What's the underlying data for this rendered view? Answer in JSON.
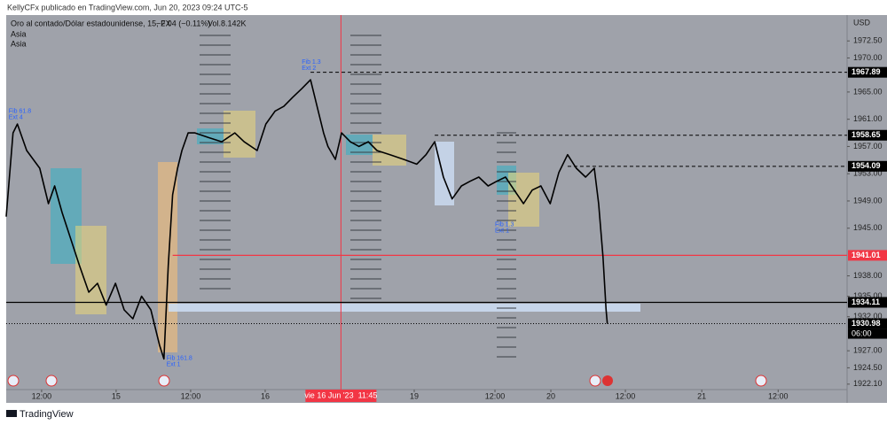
{
  "header": {
    "title": "KellyCFx publicado en TradingView.com, Jun 20, 2023 09:24 UTC-5"
  },
  "chart_data": {
    "type": "line",
    "legend_title": "Oro al contado/Dólar estadounidense, 15, FX",
    "change": "−2.04 (−0.11%)",
    "volume": "Vol.8.142K",
    "indicators": [
      "Asia",
      "Asia"
    ],
    "currency": "USD",
    "x": [
      6.3,
      7.4,
      8.1,
      9.6,
      11.7,
      13.1,
      14.1,
      15.3,
      16.7,
      18.1,
      19.6,
      21.0,
      22.4,
      23.9,
      25.3,
      26.7,
      28.1,
      29.6,
      31.0,
      31.7,
      32.4,
      33.1,
      33.9,
      34.6,
      35.6,
      36.7,
      38.9,
      41.0,
      43.1,
      44.6,
      46.7,
      48.1,
      49.6,
      51.0,
      52.4,
      53.9,
      55.3,
      56.0,
      56.7,
      57.4,
      58.1,
      59.3,
      60.3,
      61.7,
      63.1,
      64.6,
      66.0,
      68.1,
      70.3,
      72.4,
      73.9,
      75.3,
      76.0,
      76.7,
      78.1,
      79.6,
      81.0,
      82.4,
      83.9,
      85.3,
      86.7,
      88.1,
      89.6,
      91.0,
      92.4,
      93.9,
      95.3,
      96.7,
      98.1,
      99.6,
      101.0,
      101.7,
      102.4,
      102.9,
      103.1
    ],
    "series": [
      {
        "name": "Oro al contado/Dólar estadounidense",
        "color": "#000000",
        "values": [
          1946.7,
          1959.0,
          1960.3,
          1956.4,
          1953.8,
          1948.6,
          1951.2,
          1947.3,
          1943.4,
          1939.5,
          1935.6,
          1936.9,
          1933.7,
          1936.9,
          1933.0,
          1931.7,
          1935.0,
          1933.0,
          1927.8,
          1925.8,
          1939.5,
          1949.9,
          1953.8,
          1956.4,
          1959.0,
          1959.0,
          1958.3,
          1957.7,
          1959.0,
          1957.7,
          1956.4,
          1960.3,
          1962.2,
          1962.9,
          1964.2,
          1965.5,
          1966.8,
          1964.2,
          1961.6,
          1959.0,
          1957.0,
          1955.1,
          1959.0,
          1957.7,
          1957.0,
          1957.7,
          1956.4,
          1955.8,
          1955.1,
          1954.4,
          1955.8,
          1957.7,
          1955.1,
          1952.5,
          1949.3,
          1951.2,
          1951.9,
          1952.5,
          1951.2,
          1951.9,
          1952.5,
          1950.6,
          1948.6,
          1950.6,
          1951.2,
          1948.6,
          1953.2,
          1955.8,
          1953.8,
          1952.5,
          1953.8,
          1948.6,
          1940.8,
          1933.0,
          1930.98
        ]
      }
    ],
    "xlim": [
      6.3,
      141.7
    ],
    "xticks": [
      {
        "value": 12,
        "label": "12:00"
      },
      {
        "value": 24,
        "label": "15"
      },
      {
        "value": 36,
        "label": "12:00"
      },
      {
        "value": 48,
        "label": "16"
      },
      {
        "value": 72,
        "label": "19"
      },
      {
        "value": 85,
        "label": "12:00"
      },
      {
        "value": 94,
        "label": "20"
      },
      {
        "value": 106,
        "label": "12:00"
      },
      {
        "value": 118.3,
        "label": "21"
      },
      {
        "value": 130.6,
        "label": "12:00"
      }
    ],
    "ylim": [
      1921.3,
      1976.3
    ],
    "yticks": [
      {
        "value": 1972.5,
        "label": "1972.50"
      },
      {
        "value": 1970,
        "label": "1970.00"
      },
      {
        "value": 1965,
        "label": "1965.00"
      },
      {
        "value": 1961,
        "label": "1961.00"
      },
      {
        "value": 1957,
        "label": "1957.00"
      },
      {
        "value": 1953,
        "label": "1953.00"
      },
      {
        "value": 1949,
        "label": "1949.00"
      },
      {
        "value": 1945,
        "label": "1945.00"
      },
      {
        "value": 1938,
        "label": "1938.00"
      },
      {
        "value": 1935,
        "label": "1935.00"
      },
      {
        "value": 1932,
        "label": "1932.00"
      },
      {
        "value": 1927,
        "label": "1927.00"
      },
      {
        "value": 1924.5,
        "label": "1924.50"
      },
      {
        "value": 1922.1,
        "label": "1922.10"
      }
    ],
    "price_lines": [
      {
        "value": 1967.89,
        "from": 55.3,
        "color": "#000000",
        "style": "dashed"
      },
      {
        "value": 1958.65,
        "from": 75.3,
        "color": "#000000",
        "style": "dashed"
      },
      {
        "value": 1954.09,
        "from": 96.7,
        "color": "#000000",
        "style": "dashed"
      },
      {
        "value": 1941.01,
        "from": 33.1,
        "color": "#f23645",
        "style": "solid"
      },
      {
        "value": 1934.11,
        "from": 6.3,
        "color": "#000000",
        "style": "solid"
      },
      {
        "value": 1930.98,
        "from": 6.3,
        "color": "#000000",
        "style": "dotted"
      }
    ],
    "countdown": "06:00",
    "crosshair": {
      "value": 60.2,
      "label": "vie 16 Jun '23  11:45",
      "color": "#f23645"
    },
    "annotations": [
      {
        "text": "Fib 61.8",
        "sub": "Ext 4",
        "x": 6.7,
        "y": 1962.2
      },
      {
        "text": "Fib 1.3",
        "sub": "Ext 2",
        "x": 53.9,
        "y": 1969.4
      },
      {
        "text": "Fib 161.8",
        "sub": "Ext 1",
        "x": 32.1,
        "y": 1925.9
      },
      {
        "text": "Fib 1.3",
        "sub": "Ext 1",
        "x": 85.0,
        "y": 1945.5
      }
    ]
  },
  "footer": {
    "brand": "TradingView"
  }
}
